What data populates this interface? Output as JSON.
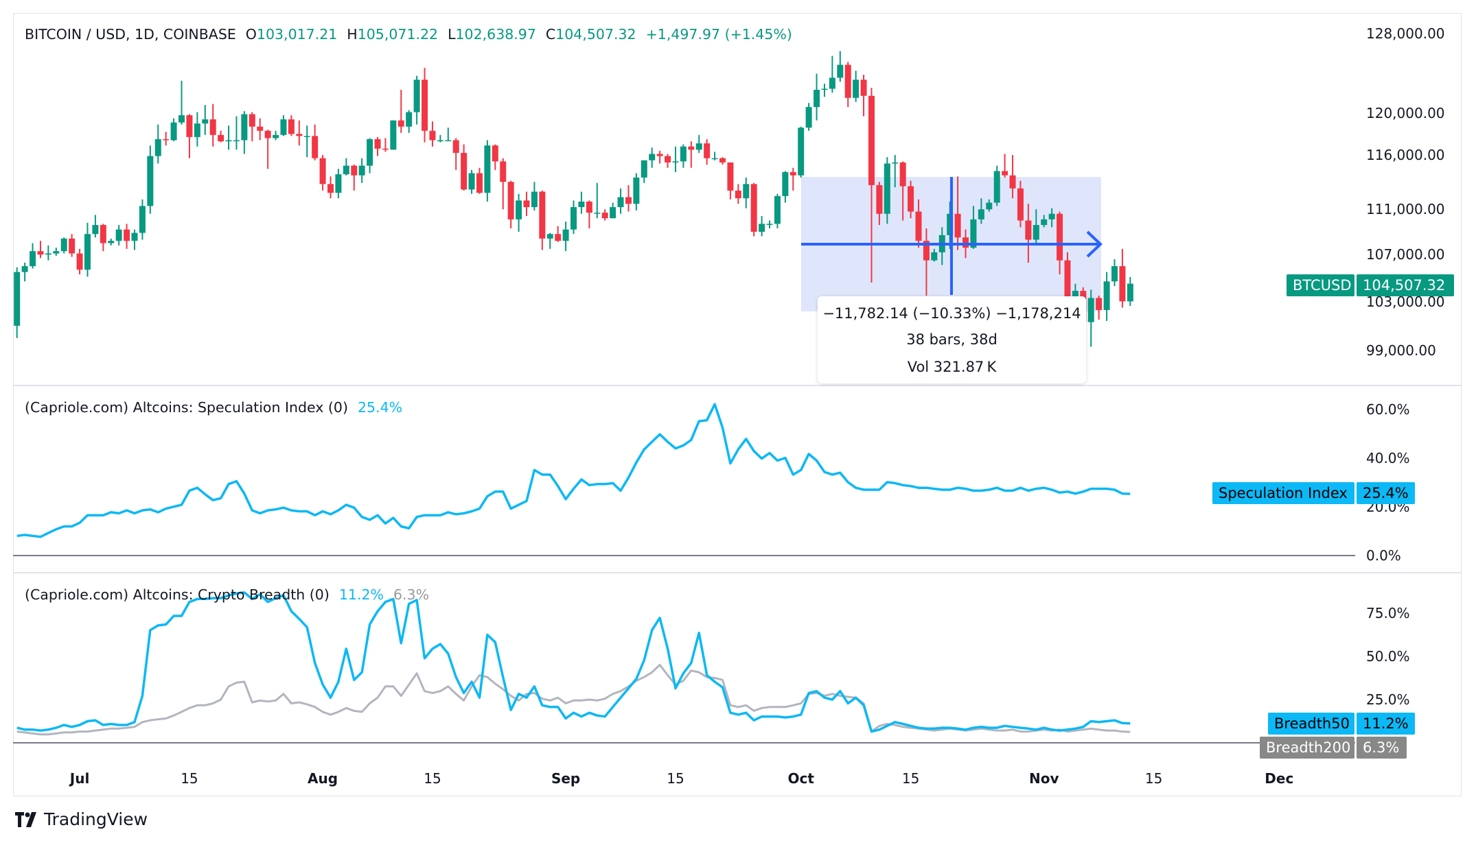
{
  "header": {
    "symbol": "BITCOIN / USD, 1D, COINBASE",
    "o_label": "O",
    "o_value": "103,017.21",
    "h_label": "H",
    "h_value": "105,071.22",
    "l_label": "L",
    "l_value": "102,638.97",
    "c_label": "C",
    "c_value": "104,507.32",
    "change": "+1,497.97 (+1.45%)"
  },
  "panes": {
    "speculation": {
      "title": "(Capriole.com) Altcoins: Speculation Index (0)",
      "value": "25.4%"
    },
    "breadth": {
      "title": "(Capriole.com) Altcoins: Crypto Breadth (0)",
      "value50": "11.2%",
      "value200": "6.3%"
    }
  },
  "tags": {
    "btc_name": "BTCUSD",
    "btc_value": "104,507.32",
    "spec_name": "Speculation Index",
    "spec_value": "25.4%",
    "b50_name": "Breadth50",
    "b50_value": "11.2%",
    "b200_name": "Breadth200",
    "b200_value": "6.3%"
  },
  "range_tool": {
    "line1": "−11,782.14 (−10.33%) −1,178,214",
    "line2": "38 bars, 38d",
    "line3": "Vol 321.87 K"
  },
  "brand": {
    "name": "TradingView"
  },
  "colors": {
    "up": "#089981",
    "down": "#f23645",
    "spec": "#0cb8f5",
    "b50": "#0cb8f5",
    "b200": "#b2b5be",
    "range_fill": "#dfe6fb",
    "range_line": "#2962ff"
  },
  "chart_data": [
    {
      "type": "candlestick",
      "title": "BITCOIN / USD, 1D, COINBASE",
      "scale": "log",
      "x_start": "Jun 23",
      "x_ticks": [
        {
          "label": "Jul",
          "day": "Jul 1"
        },
        {
          "label": "15",
          "day": "Jul 15"
        },
        {
          "label": "Aug",
          "day": "Aug 1"
        },
        {
          "label": "15",
          "day": "Aug 15"
        },
        {
          "label": "Sep",
          "day": "Sep 1"
        },
        {
          "label": "15",
          "day": "Sep 15"
        },
        {
          "label": "Oct",
          "day": "Oct 1"
        },
        {
          "label": "15",
          "day": "Oct 15"
        },
        {
          "label": "Nov",
          "day": "Nov 1"
        },
        {
          "label": "15",
          "day": "Nov 15"
        },
        {
          "label": "Dec",
          "day": "Dec 1"
        }
      ],
      "y_ticks": [
        {
          "label": "128,000.00",
          "value": 128000
        },
        {
          "label": "120,000.00",
          "value": 120000
        },
        {
          "label": "116,000.00",
          "value": 116000
        },
        {
          "label": "111,000.00",
          "value": 111000
        },
        {
          "label": "107,000.00",
          "value": 107000
        },
        {
          "label": "103,000.00",
          "value": 103000
        },
        {
          "label": "99,000.00",
          "value": 99000
        }
      ],
      "first_open": 101000,
      "close": [
        105500,
        106000,
        107300,
        107000,
        107100,
        107300,
        108400,
        107100,
        105700,
        108800,
        109600,
        108000,
        108200,
        109200,
        108200,
        108900,
        111300,
        115900,
        117500,
        117400,
        119100,
        119800,
        117700,
        119000,
        119400,
        117900,
        117300,
        117400,
        117400,
        119900,
        118700,
        118300,
        117600,
        117900,
        119400,
        118000,
        117800,
        117800,
        115700,
        113300,
        112500,
        114200,
        115000,
        114100,
        115000,
        117500,
        116600,
        116500,
        119300,
        118700,
        120100,
        123300,
        118300,
        117400,
        117400,
        117400,
        116200,
        112800,
        114300,
        112500,
        116900,
        115400,
        113500,
        110100,
        111800,
        111200,
        112600,
        108400,
        108800,
        108200,
        109200,
        111200,
        111700,
        110700,
        110700,
        110200,
        111200,
        112100,
        111500,
        113900,
        115500,
        116100,
        115900,
        115300,
        115400,
        116800,
        116500,
        117100,
        115700,
        115700,
        115300,
        112700,
        112000,
        113300,
        109000,
        109700,
        109700,
        112200,
        114400,
        114100,
        118600,
        120600,
        122300,
        122400,
        123500,
        124800,
        121500,
        123300,
        121700,
        113200,
        110600,
        115200,
        115300,
        113100,
        110800,
        108200,
        106500,
        107200,
        108700,
        110600,
        108500,
        107600,
        110100,
        111000,
        111600,
        114500,
        114100,
        112900,
        110000,
        108300,
        109600,
        110100,
        110600,
        106500,
        101500,
        103900,
        101300,
        103300,
        102300,
        104700,
        106000,
        103017.21,
        104507.32
      ],
      "high": [
        105900,
        106300,
        108000,
        108200,
        107800,
        107600,
        108500,
        108800,
        107500,
        109800,
        110500,
        109700,
        108400,
        109600,
        109700,
        109200,
        111900,
        116900,
        118900,
        118200,
        119500,
        123200,
        119900,
        120100,
        120800,
        120900,
        118300,
        118800,
        119700,
        120200,
        120100,
        119500,
        118400,
        118300,
        119800,
        119800,
        119300,
        118800,
        118900,
        116000,
        114000,
        114700,
        115700,
        115100,
        115700,
        117600,
        117700,
        117600,
        119300,
        122300,
        120300,
        123700,
        124500,
        119200,
        117900,
        118600,
        117600,
        117000,
        114600,
        114800,
        117400,
        117000,
        115700,
        113600,
        112400,
        112600,
        113500,
        112700,
        108900,
        109500,
        109900,
        111800,
        112600,
        111800,
        113400,
        111000,
        111600,
        112900,
        113200,
        114300,
        115500,
        116700,
        116400,
        116100,
        116800,
        117000,
        117300,
        117900,
        117500,
        116300,
        115800,
        115300,
        113300,
        113900,
        113400,
        110400,
        110000,
        112400,
        114500,
        114800,
        118700,
        121000,
        123900,
        122900,
        125700,
        126200,
        125100,
        124200,
        123800,
        122500,
        113500,
        115800,
        116000,
        115400,
        113600,
        111900,
        109300,
        107500,
        109400,
        111700,
        114000,
        109200,
        111300,
        112000,
        111900,
        115000,
        116100,
        116000,
        113600,
        111500,
        111000,
        110500,
        111100,
        110800,
        107200,
        104500,
        104200,
        104000,
        103500,
        105500,
        106600,
        107500,
        105071.22
      ],
      "low": [
        100000,
        104700,
        105800,
        106700,
        106500,
        106900,
        107100,
        106800,
        105300,
        105100,
        108500,
        107300,
        107800,
        107800,
        107500,
        107400,
        108300,
        110600,
        115200,
        116900,
        117300,
        118900,
        115700,
        116800,
        117900,
        116800,
        117200,
        116500,
        116500,
        116100,
        117300,
        117400,
        114700,
        117400,
        117800,
        117800,
        116900,
        115800,
        115500,
        112700,
        112000,
        112000,
        114100,
        112700,
        113400,
        114300,
        115900,
        116300,
        116500,
        118100,
        118100,
        118900,
        117200,
        116800,
        117200,
        117300,
        114600,
        112700,
        112400,
        112400,
        111700,
        114600,
        111000,
        109300,
        109000,
        110400,
        110900,
        107400,
        107500,
        108100,
        107300,
        108800,
        110600,
        109300,
        110200,
        110000,
        110200,
        110600,
        110800,
        110900,
        113400,
        114800,
        115200,
        114800,
        114400,
        114800,
        114800,
        116200,
        115100,
        115500,
        115100,
        111900,
        111500,
        111100,
        108600,
        108600,
        109300,
        109300,
        111600,
        112700,
        113900,
        118300,
        119300,
        121600,
        122000,
        123100,
        120600,
        121100,
        119700,
        104600,
        109600,
        109700,
        113000,
        110000,
        110200,
        107600,
        103500,
        106400,
        106100,
        107500,
        107400,
        106700,
        107500,
        109700,
        110800,
        111300,
        113900,
        112000,
        109400,
        106300,
        108000,
        109400,
        109400,
        105300,
        98900,
        98900,
        100300,
        99300,
        101500,
        101400,
        104300,
        102500,
        102638.97
      ],
      "last_price": 104507.32
    },
    {
      "type": "line",
      "title": "(Capriole.com) Altcoins: Speculation Index (0)",
      "y_ticks": [
        {
          "label": "60.0%",
          "value": 60
        },
        {
          "label": "40.0%",
          "value": 40
        },
        {
          "label": "20.0%",
          "value": 20
        },
        {
          "label": "0.0%",
          "value": 0
        }
      ],
      "series": [
        {
          "name": "Speculation Index",
          "values": [
            8.1,
            8.5,
            8.1,
            7.7,
            9.3,
            10.8,
            12.0,
            12.0,
            13.5,
            16.6,
            16.6,
            16.6,
            17.8,
            17.4,
            18.6,
            17.4,
            18.6,
            19.0,
            17.8,
            19.3,
            20.1,
            20.9,
            26.7,
            27.9,
            25.2,
            22.8,
            23.6,
            29.4,
            30.6,
            25.5,
            18.6,
            17.4,
            18.6,
            19.0,
            19.7,
            18.6,
            18.2,
            18.2,
            16.6,
            18.2,
            17.0,
            18.6,
            20.9,
            19.7,
            15.9,
            14.7,
            16.6,
            13.2,
            15.5,
            12.0,
            11.2,
            15.9,
            16.6,
            16.6,
            16.6,
            17.8,
            17.0,
            17.4,
            18.2,
            19.3,
            24.4,
            26.3,
            26.3,
            19.3,
            20.9,
            22.4,
            35.2,
            33.3,
            33.3,
            28.6,
            23.2,
            27.5,
            31.3,
            29.0,
            29.4,
            29.4,
            29.8,
            26.7,
            32.1,
            38.3,
            43.7,
            46.8,
            49.9,
            46.8,
            44.1,
            45.3,
            47.6,
            55.3,
            55.7,
            62.3,
            52.6,
            37.9,
            43.7,
            48.0,
            43.0,
            39.9,
            42.2,
            39.1,
            40.2,
            33.3,
            35.2,
            41.8,
            39.1,
            34.4,
            33.3,
            34.1,
            30.2,
            27.9,
            27.1,
            27.1,
            27.1,
            30.2,
            29.8,
            29.0,
            28.6,
            27.9,
            27.9,
            27.5,
            27.1,
            27.1,
            27.9,
            27.5,
            26.7,
            26.7,
            27.1,
            27.9,
            26.7,
            26.7,
            27.9,
            26.7,
            27.5,
            27.9,
            27.1,
            25.9,
            26.3,
            25.5,
            26.3,
            27.5,
            27.5,
            27.5,
            27.1,
            25.5,
            25.4
          ]
        }
      ]
    },
    {
      "type": "line",
      "title": "(Capriole.com) Altcoins: Crypto Breadth (0)",
      "y_ticks": [
        {
          "label": "75.0%",
          "value": 75
        },
        {
          "label": "50.0%",
          "value": 50
        },
        {
          "label": "25.0%",
          "value": 25
        }
      ],
      "series": [
        {
          "name": "Breadth50",
          "values": [
            8.7,
            7.6,
            7.6,
            7.1,
            7.6,
            8.7,
            10.3,
            9.2,
            10.3,
            12.5,
            13.0,
            10.3,
            10.9,
            10.3,
            10.3,
            12.0,
            27.2,
            65.2,
            67.9,
            68.5,
            73.4,
            73.4,
            81.5,
            83.2,
            83.2,
            83.7,
            83.7,
            85.3,
            86.4,
            87.0,
            83.2,
            85.9,
            81.5,
            83.7,
            85.3,
            76.1,
            71.7,
            66.9,
            46.2,
            33.7,
            26.1,
            35.3,
            54.4,
            36.4,
            40.8,
            68.5,
            76.1,
            81.5,
            83.2,
            57.6,
            80.4,
            82.6,
            48.9,
            54.4,
            57.1,
            51.6,
            38.0,
            28.8,
            35.3,
            26.1,
            62.5,
            58.2,
            38.0,
            19.0,
            28.3,
            26.1,
            32.6,
            21.7,
            20.7,
            20.7,
            14.1,
            17.4,
            15.2,
            17.4,
            15.8,
            15.2,
            20.7,
            26.1,
            31.5,
            37.0,
            47.8,
            65.2,
            72.3,
            54.4,
            31.5,
            40.2,
            46.2,
            63.6,
            39.1,
            35.3,
            32.1,
            17.4,
            16.3,
            17.4,
            13.0,
            15.2,
            15.2,
            15.2,
            14.7,
            15.2,
            16.3,
            28.8,
            29.9,
            26.1,
            25.0,
            29.9,
            22.8,
            26.1,
            21.7,
            6.5,
            7.6,
            9.8,
            12.0,
            10.9,
            9.8,
            8.7,
            8.2,
            8.2,
            8.7,
            8.7,
            8.2,
            7.6,
            8.7,
            9.2,
            8.7,
            8.7,
            9.8,
            9.2,
            8.7,
            8.2,
            7.6,
            8.7,
            7.6,
            7.1,
            7.6,
            8.2,
            9.2,
            12.5,
            12.0,
            12.5,
            13.0,
            11.4,
            11.2
          ]
        },
        {
          "name": "Breadth200",
          "values": [
            6.5,
            6.0,
            5.4,
            4.9,
            4.9,
            5.4,
            6.0,
            6.0,
            6.5,
            6.5,
            7.1,
            7.6,
            8.2,
            8.2,
            8.7,
            9.2,
            12.0,
            13.0,
            13.6,
            14.1,
            15.8,
            17.9,
            20.1,
            21.7,
            21.7,
            22.8,
            25.0,
            32.6,
            34.8,
            35.3,
            23.4,
            24.5,
            23.9,
            24.5,
            28.3,
            22.8,
            23.4,
            22.3,
            20.7,
            17.9,
            16.3,
            17.9,
            20.1,
            18.5,
            17.9,
            22.8,
            26.1,
            32.6,
            32.6,
            27.2,
            33.7,
            40.2,
            29.9,
            28.8,
            29.9,
            32.6,
            28.3,
            24.5,
            32.6,
            39.1,
            38.0,
            34.2,
            31.0,
            27.2,
            24.5,
            28.3,
            28.8,
            25.5,
            24.5,
            26.1,
            22.8,
            24.5,
            24.5,
            25.0,
            24.5,
            25.5,
            28.3,
            29.9,
            32.6,
            35.9,
            38.0,
            40.8,
            45.1,
            39.1,
            33.7,
            35.9,
            41.8,
            40.8,
            38.0,
            37.5,
            36.4,
            21.7,
            20.7,
            21.7,
            18.5,
            20.1,
            20.7,
            20.7,
            20.7,
            21.7,
            22.8,
            28.3,
            28.8,
            27.2,
            28.3,
            27.2,
            26.6,
            26.1,
            22.8,
            6.5,
            9.8,
            10.9,
            10.3,
            9.2,
            8.7,
            8.2,
            7.6,
            7.1,
            7.6,
            8.2,
            7.6,
            7.1,
            7.6,
            8.2,
            7.6,
            7.1,
            7.1,
            7.6,
            6.5,
            6.5,
            7.1,
            7.6,
            7.1,
            7.6,
            6.5,
            7.1,
            7.6,
            8.2,
            7.6,
            7.1,
            7.1,
            6.5,
            6.3
          ]
        }
      ]
    }
  ]
}
